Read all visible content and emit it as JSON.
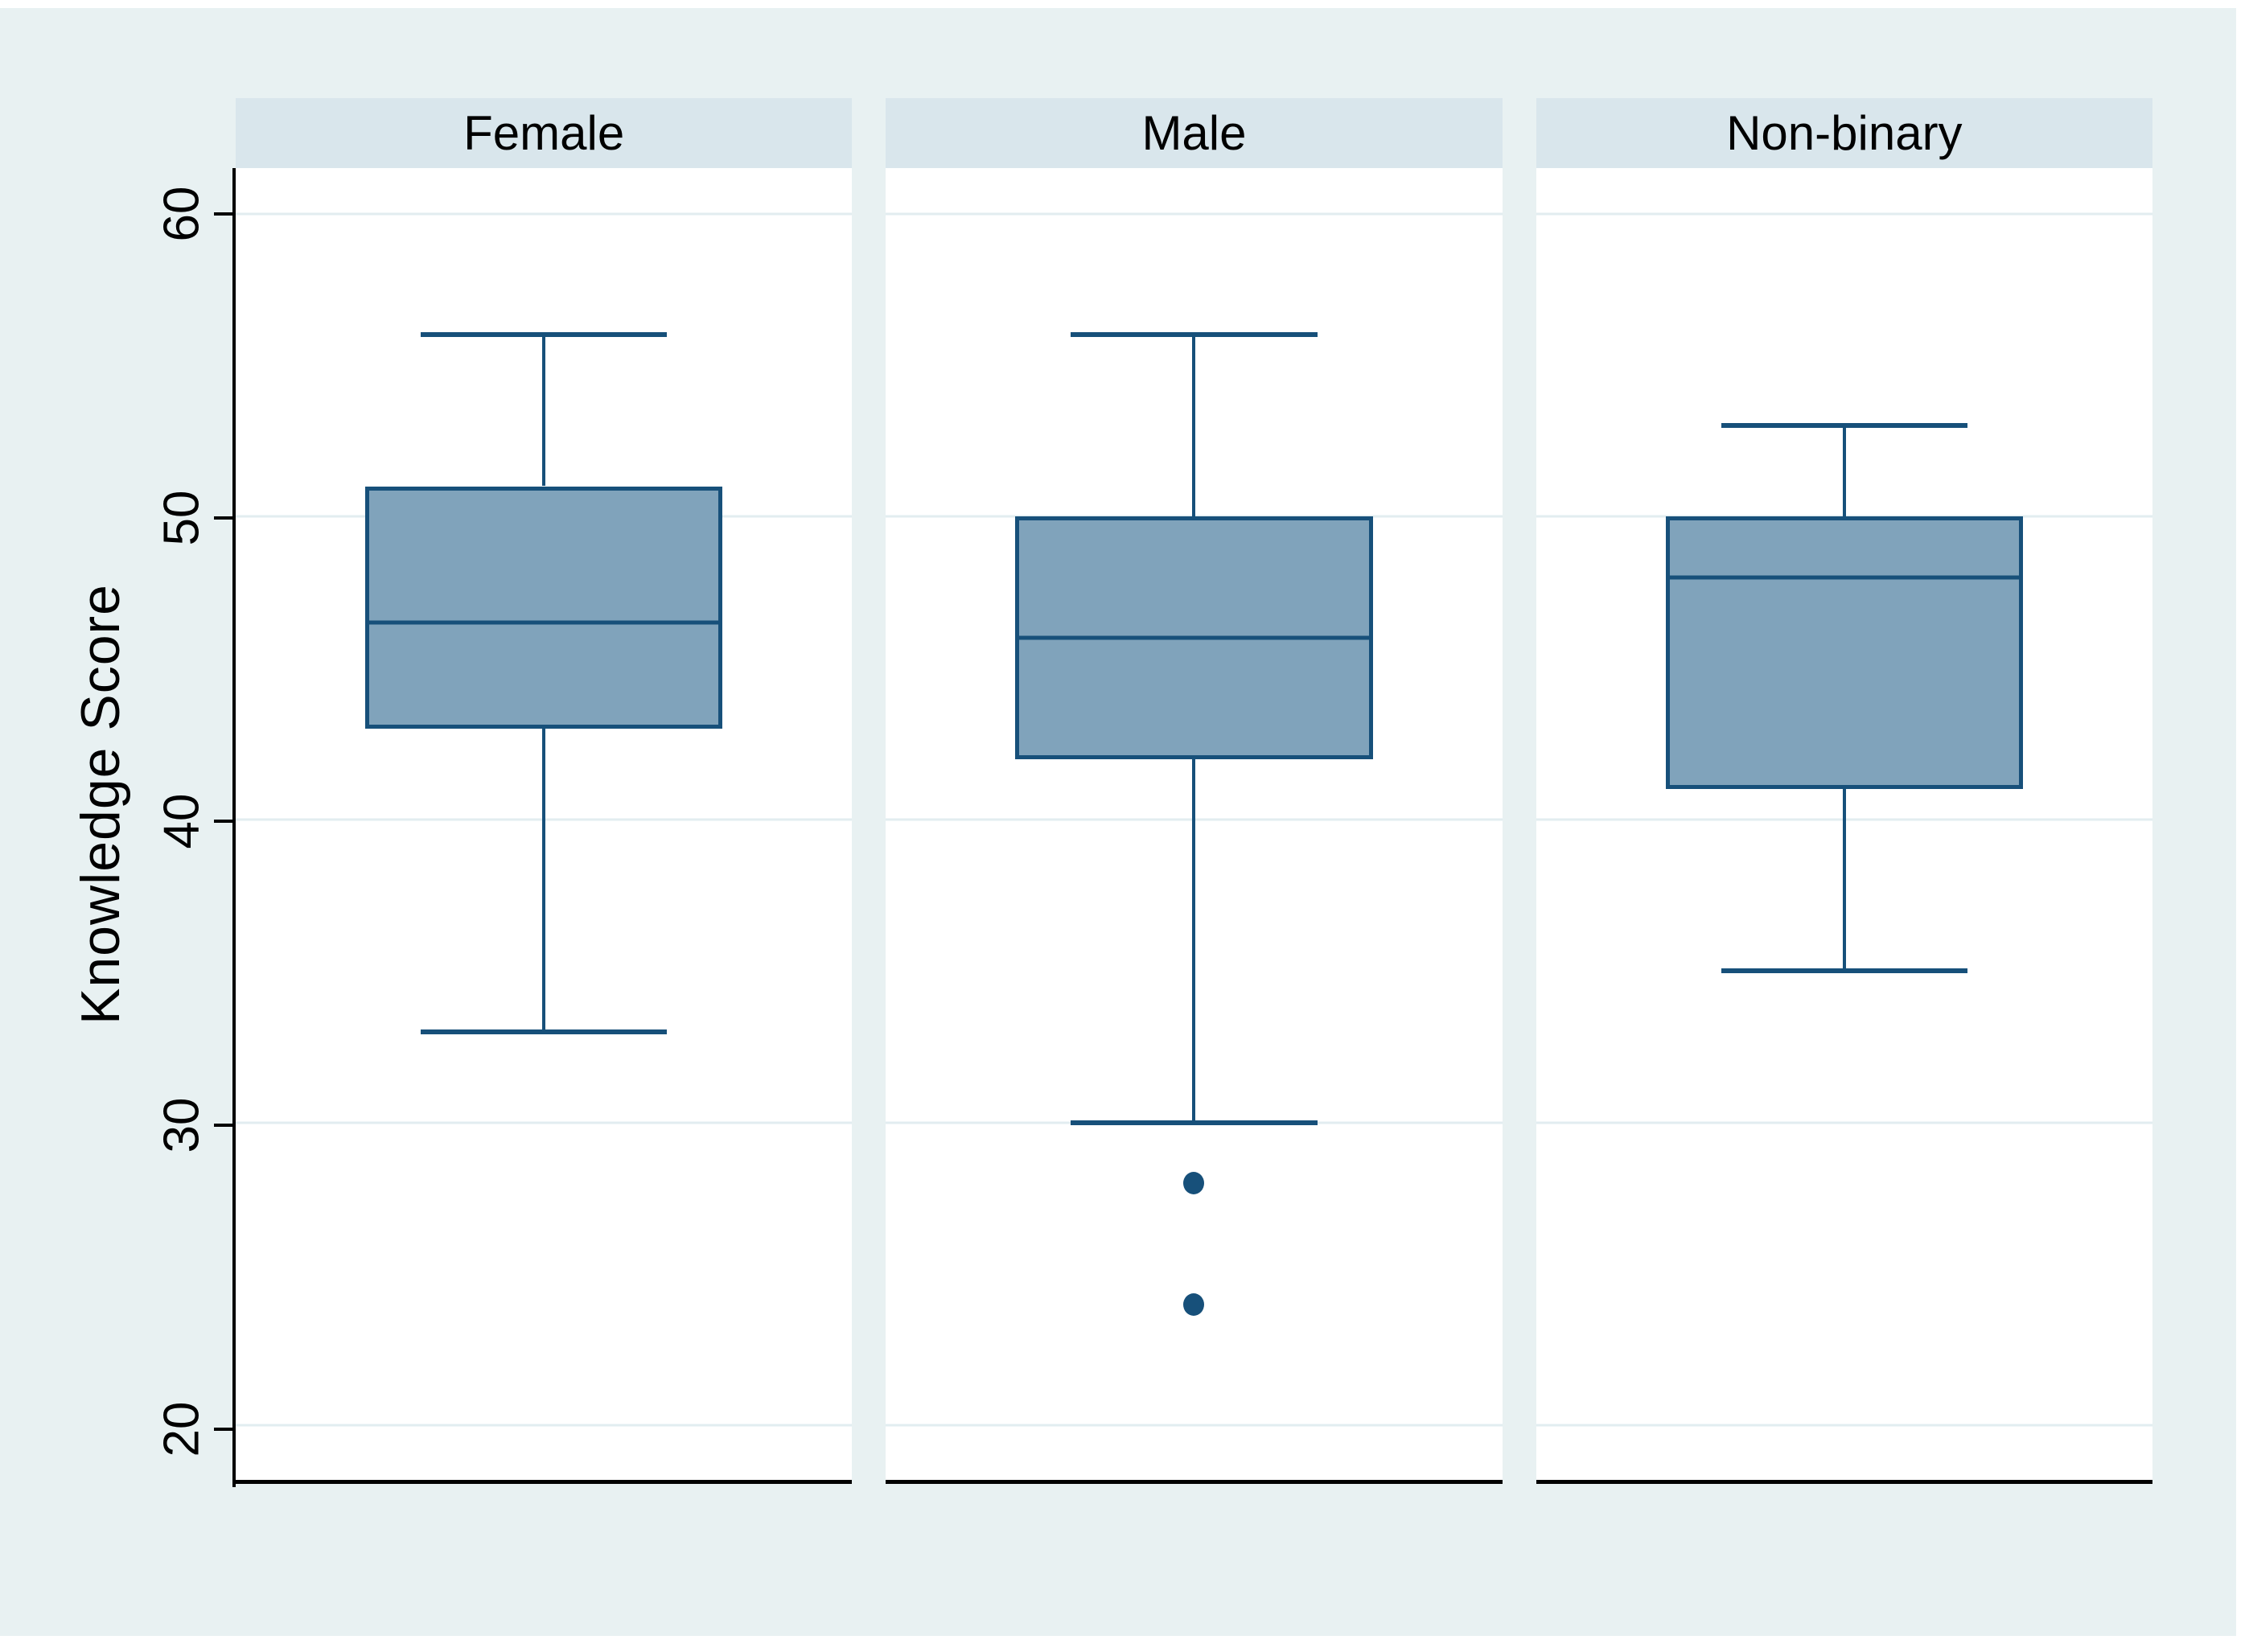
{
  "figure": {
    "background_color": "#e8f1f2",
    "panel_header_color": "#d9e6ec",
    "plot_background_color": "#ffffff",
    "gridline_color": "#e2edf0",
    "box_fill_color": "#80a3bb",
    "box_stroke_color": "#17507a",
    "axis_color": "#000000"
  },
  "chart_data": {
    "type": "boxplot",
    "title": "",
    "ylabel": "Knowledge Score",
    "xlabel": "",
    "grid": true,
    "yticks": [
      20,
      30,
      40,
      50,
      60
    ],
    "ylim": [
      18.2,
      61.5
    ],
    "legend": "none",
    "groups": [
      {
        "label": "Female",
        "whisker_low": 33,
        "q1": 43,
        "median": 46.5,
        "q3": 51,
        "whisker_high": 56,
        "outliers": []
      },
      {
        "label": "Male",
        "whisker_low": 30,
        "q1": 42,
        "median": 46,
        "q3": 50,
        "whisker_high": 56,
        "outliers": [
          28,
          24
        ]
      },
      {
        "label": "Non-binary",
        "whisker_low": 35,
        "q1": 41,
        "median": 48,
        "q3": 50,
        "whisker_high": 53,
        "outliers": []
      }
    ]
  }
}
